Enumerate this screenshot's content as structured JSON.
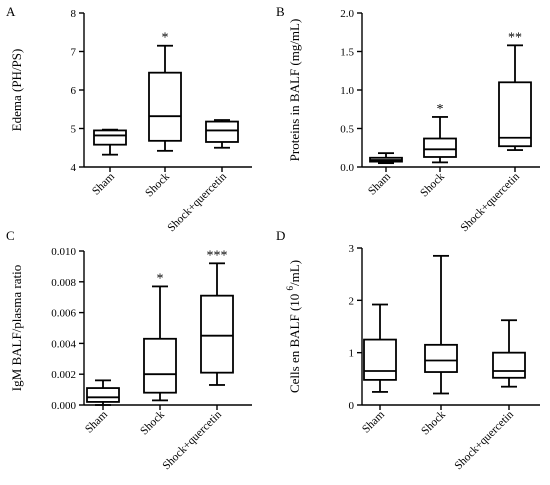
{
  "chart_data": [
    {
      "type": "boxplot",
      "panel": "A",
      "ylabel": "Edema (PH/PS)",
      "ylim": [
        4,
        8
      ],
      "yticks": [
        4,
        5,
        6,
        7,
        8
      ],
      "categories": [
        "Sham",
        "Shock",
        "Shock+quercetin"
      ],
      "boxes": [
        {
          "min": 4.32,
          "q1": 4.58,
          "median": 4.82,
          "q3": 4.95,
          "max": 4.97,
          "sig": ""
        },
        {
          "min": 4.42,
          "q1": 4.68,
          "median": 5.32,
          "q3": 6.45,
          "max": 7.15,
          "sig": "*"
        },
        {
          "min": 4.5,
          "q1": 4.65,
          "median": 4.95,
          "q3": 5.18,
          "max": 5.22,
          "sig": ""
        }
      ]
    },
    {
      "type": "boxplot",
      "panel": "B",
      "ylabel": "Proteins in BALF (mg/mL)",
      "ylim": [
        0,
        2
      ],
      "yticks": [
        "0.0",
        "0.5",
        "1.0",
        "1.5",
        "2.0"
      ],
      "categories": [
        "Sham",
        "Shock",
        "Shock+quercetin"
      ],
      "boxes": [
        {
          "min": 0.05,
          "q1": 0.07,
          "median": 0.09,
          "q3": 0.12,
          "max": 0.18,
          "sig": ""
        },
        {
          "min": 0.06,
          "q1": 0.13,
          "median": 0.23,
          "q3": 0.37,
          "max": 0.65,
          "sig": "*"
        },
        {
          "min": 0.22,
          "q1": 0.27,
          "median": 0.38,
          "q3": 1.1,
          "max": 1.58,
          "sig": "**"
        }
      ]
    },
    {
      "type": "boxplot",
      "panel": "C",
      "ylabel": "IgM BALF/plasma ratio",
      "ylim": [
        0,
        0.01
      ],
      "yticks": [
        "0.000",
        "0.002",
        "0.004",
        "0.006",
        "0.008",
        "0.010"
      ],
      "categories": [
        "Sham",
        "Shock",
        "Shock+quercetin"
      ],
      "boxes": [
        {
          "min": 0.0,
          "q1": 0.0002,
          "median": 0.0005,
          "q3": 0.0011,
          "max": 0.0016,
          "sig": ""
        },
        {
          "min": 0.0003,
          "q1": 0.0008,
          "median": 0.002,
          "q3": 0.0043,
          "max": 0.0077,
          "sig": "*"
        },
        {
          "min": 0.0013,
          "q1": 0.0021,
          "median": 0.0045,
          "q3": 0.0071,
          "max": 0.0092,
          "sig": "***"
        }
      ]
    },
    {
      "type": "boxplot",
      "panel": "D",
      "ylabel": "Cells en BALF (10",
      "ylabel_sup": "6",
      "ylabel_tail": "/mL)",
      "ylim": [
        0,
        3
      ],
      "yticks": [
        0,
        1,
        2,
        3
      ],
      "categories": [
        "Sham",
        "Shock",
        "Shock+quercetin"
      ],
      "boxes": [
        {
          "min": 0.25,
          "q1": 0.48,
          "median": 0.65,
          "q3": 1.25,
          "max": 1.92,
          "sig": ""
        },
        {
          "min": 0.22,
          "q1": 0.63,
          "median": 0.85,
          "q3": 1.15,
          "max": 2.85,
          "sig": ""
        },
        {
          "min": 0.35,
          "q1": 0.52,
          "median": 0.65,
          "q3": 1.0,
          "max": 1.62,
          "sig": ""
        }
      ]
    }
  ]
}
